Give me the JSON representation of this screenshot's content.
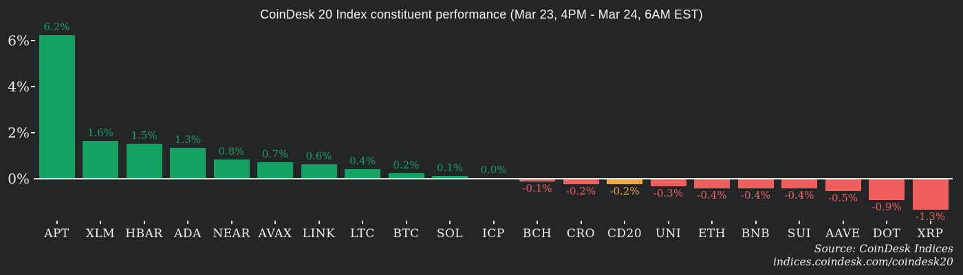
{
  "colors": {
    "background": "#232526",
    "positive": "#14a263",
    "negative": "#f15f5f",
    "highlight": "#f5a63c",
    "axis": "#e8e7e4",
    "text": "#f0efec"
  },
  "source": {
    "line1": "Source: CoinDesk Indices",
    "line2": "indices.coindesk.com/coindesk20"
  },
  "chart_data": {
    "type": "bar",
    "title": "CoinDesk 20 Index constituent performance (Mar 23, 4PM - Mar 24, 6AM EST)",
    "categories": [
      "APT",
      "XLM",
      "HBAR",
      "ADA",
      "NEAR",
      "AVAX",
      "LINK",
      "LTC",
      "BTC",
      "SOL",
      "ICP",
      "BCH",
      "CRO",
      "CD20",
      "UNI",
      "ETH",
      "BNB",
      "SUI",
      "AAVE",
      "DOT",
      "XRP"
    ],
    "values": [
      6.2,
      1.6,
      1.5,
      1.3,
      0.8,
      0.7,
      0.6,
      0.4,
      0.2,
      0.1,
      0.0,
      -0.1,
      -0.2,
      -0.2,
      -0.3,
      -0.4,
      -0.4,
      -0.4,
      -0.5,
      -0.9,
      -1.3
    ],
    "labels": [
      "6.2%",
      "1.6%",
      "1.5%",
      "1.3%",
      "0.8%",
      "0.7%",
      "0.6%",
      "0.4%",
      "0.2%",
      "0.1%",
      "0.0%",
      "-0.1%",
      "-0.2%",
      "-0.2%",
      "-0.3%",
      "-0.4%",
      "-0.4%",
      "-0.4%",
      "-0.5%",
      "-0.9%",
      "-1.3%"
    ],
    "highlighted_category": "CD20",
    "y_ticks": [
      {
        "label": "0%",
        "value": 0
      },
      {
        "label": "2%",
        "value": 2
      },
      {
        "label": "4%",
        "value": 4
      },
      {
        "label": "6%",
        "value": 6
      }
    ],
    "ylim": [
      -1.5,
      6.5
    ],
    "xlabel": "",
    "ylabel": "",
    "grid": false,
    "legend": "none",
    "bar_color_rule": "positive green, negative red, CD20 index highlighted orange"
  }
}
